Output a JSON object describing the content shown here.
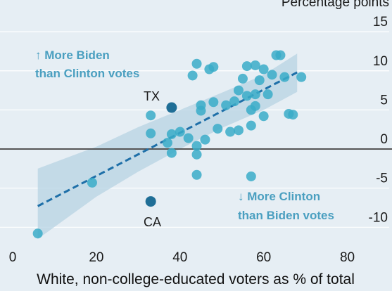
{
  "chart_data": {
    "type": "scatter",
    "title": "",
    "xlabel": "White, non-college-educated voters as % of total",
    "ylabel": "",
    "y_unit_label": "Percentage points",
    "xlim": [
      0,
      90
    ],
    "ylim": [
      -11.5,
      16
    ],
    "x_ticks": [
      "0",
      "20",
      "40",
      "60",
      "80"
    ],
    "y_ticks": [
      "15",
      "10",
      "5",
      "0",
      "-5",
      "-10"
    ],
    "grid": true,
    "annotations": {
      "top": [
        "↑ More Biden",
        "than Clinton votes"
      ],
      "bottom": [
        "↓ More Clinton",
        "than Biden votes"
      ]
    },
    "highlighted": [
      {
        "label": "TX",
        "x": 38,
        "y": 5.3
      },
      {
        "label": "CA",
        "x": 33,
        "y": -6.7
      }
    ],
    "trend_line": {
      "x": [
        6,
        68
      ],
      "y": [
        -7.3,
        9.8
      ]
    },
    "confidence_band": {
      "x": [
        6,
        20,
        30,
        40,
        50,
        60,
        68
      ],
      "upper": [
        -2.5,
        0.3,
        2.8,
        5.0,
        7.2,
        9.5,
        12.2
      ],
      "lower": [
        -11.5,
        -6.1,
        -2.9,
        0.0,
        2.7,
        5.0,
        7.3
      ]
    },
    "points": [
      {
        "x": 6,
        "y": -10.8
      },
      {
        "x": 19,
        "y": -4.3
      },
      {
        "x": 33,
        "y": -6.7
      },
      {
        "x": 33,
        "y": 4.3
      },
      {
        "x": 33,
        "y": 2.0
      },
      {
        "x": 38,
        "y": 5.3
      },
      {
        "x": 37,
        "y": 0.8
      },
      {
        "x": 38,
        "y": -0.5
      },
      {
        "x": 38,
        "y": 1.9
      },
      {
        "x": 40,
        "y": 2.2
      },
      {
        "x": 42,
        "y": 1.4
      },
      {
        "x": 43,
        "y": 9.4
      },
      {
        "x": 44,
        "y": 10.9
      },
      {
        "x": 44,
        "y": 0.4
      },
      {
        "x": 44,
        "y": -0.7
      },
      {
        "x": 44,
        "y": -3.3
      },
      {
        "x": 45,
        "y": 5.6
      },
      {
        "x": 45,
        "y": 4.9
      },
      {
        "x": 46,
        "y": 1.2
      },
      {
        "x": 47,
        "y": 10.2
      },
      {
        "x": 48,
        "y": 10.5
      },
      {
        "x": 48,
        "y": 6.0
      },
      {
        "x": 49,
        "y": 2.6
      },
      {
        "x": 51,
        "y": 5.6
      },
      {
        "x": 52,
        "y": 2.2
      },
      {
        "x": 53,
        "y": 6.1
      },
      {
        "x": 54,
        "y": 2.4
      },
      {
        "x": 54,
        "y": 7.5
      },
      {
        "x": 55,
        "y": 9.0
      },
      {
        "x": 56,
        "y": 6.8
      },
      {
        "x": 56,
        "y": 10.6
      },
      {
        "x": 57,
        "y": 5.0
      },
      {
        "x": 57,
        "y": 3.0
      },
      {
        "x": 58,
        "y": 10.7
      },
      {
        "x": 58,
        "y": 5.5
      },
      {
        "x": 58,
        "y": 7.0
      },
      {
        "x": 59,
        "y": 8.8
      },
      {
        "x": 60,
        "y": 10.2
      },
      {
        "x": 60,
        "y": 4.2
      },
      {
        "x": 61,
        "y": 7.0
      },
      {
        "x": 62,
        "y": 9.5
      },
      {
        "x": 63,
        "y": 12.0
      },
      {
        "x": 64,
        "y": 12.0
      },
      {
        "x": 65,
        "y": 9.2
      },
      {
        "x": 66,
        "y": 4.5
      },
      {
        "x": 67,
        "y": 4.4
      },
      {
        "x": 69,
        "y": 9.2
      },
      {
        "x": 57,
        "y": -3.5
      }
    ],
    "colors": {
      "point": "#3aabc8",
      "highlight": "#1f6e96",
      "trend": "#1e6fa8",
      "band": "#b7d3e3",
      "zero_line": "#555555",
      "grid": "#ffffff"
    }
  }
}
